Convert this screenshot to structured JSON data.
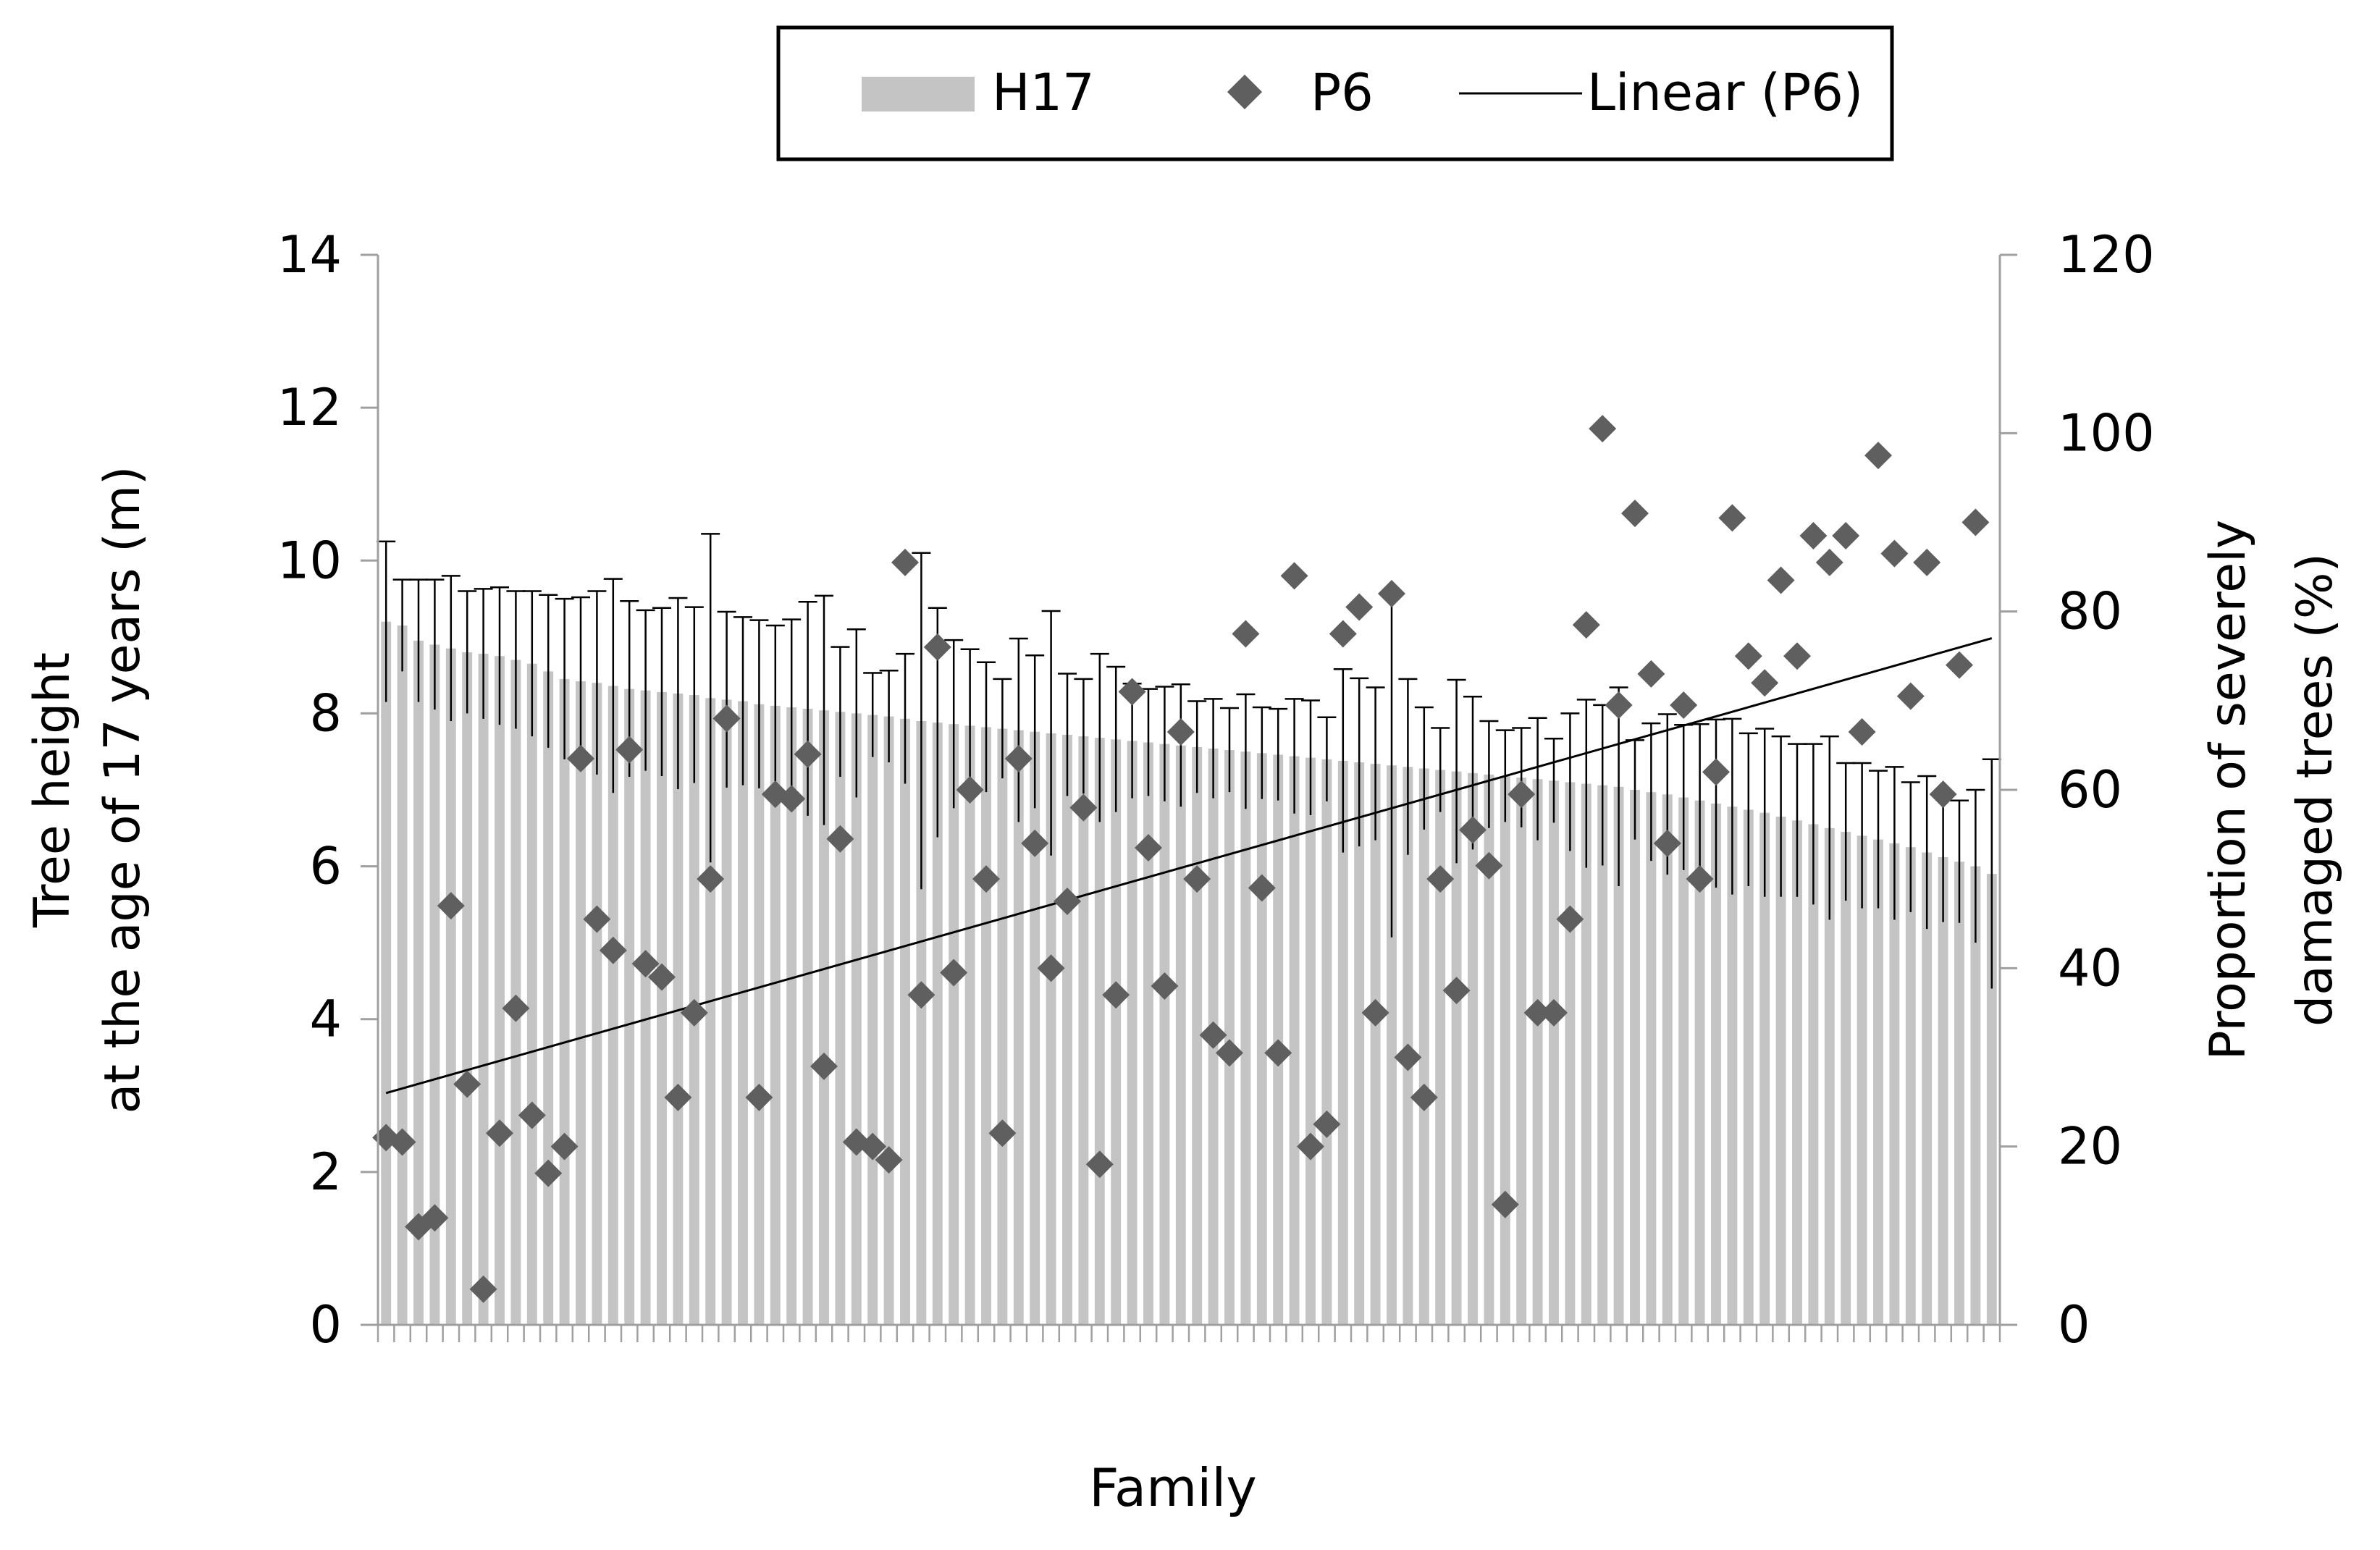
{
  "chart_data": {
    "type": "bar",
    "title": "",
    "xlabel": "Family",
    "ylabel_left": [
      "Tree height",
      "at the age of 17 years (m)"
    ],
    "ylabel_right": [
      "Proportion of severely",
      "damaged trees (%)"
    ],
    "ylim_left": [
      0,
      14
    ],
    "yticks_left": [
      0,
      2,
      4,
      6,
      8,
      10,
      12,
      14
    ],
    "ylim_right": [
      0,
      120
    ],
    "yticks_right": [
      0,
      20,
      40,
      60,
      80,
      100,
      120
    ],
    "legend": [
      {
        "label": "H17",
        "kind": "bar"
      },
      {
        "label": "P6",
        "kind": "marker"
      },
      {
        "label": "Linear (P6)",
        "kind": "line"
      }
    ],
    "colors": {
      "bar": "#c4c4c4",
      "marker": "#5f5f5f",
      "line": "#000000",
      "error": "#000000"
    },
    "series": [
      {
        "name": "H17",
        "axis": "left",
        "values": [
          9.2,
          9.15,
          8.95,
          8.9,
          8.85,
          8.8,
          8.78,
          8.75,
          8.7,
          8.65,
          8.55,
          8.45,
          8.42,
          8.4,
          8.36,
          8.32,
          8.3,
          8.28,
          8.26,
          8.24,
          8.2,
          8.18,
          8.16,
          8.12,
          8.1,
          8.08,
          8.06,
          8.04,
          8.02,
          8.0,
          7.98,
          7.96,
          7.93,
          7.9,
          7.88,
          7.86,
          7.84,
          7.82,
          7.8,
          7.78,
          7.76,
          7.74,
          7.72,
          7.7,
          7.68,
          7.66,
          7.64,
          7.62,
          7.6,
          7.58,
          7.56,
          7.54,
          7.52,
          7.5,
          7.48,
          7.46,
          7.44,
          7.42,
          7.4,
          7.38,
          7.36,
          7.34,
          7.32,
          7.3,
          7.28,
          7.26,
          7.24,
          7.22,
          7.2,
          7.18,
          7.16,
          7.14,
          7.12,
          7.1,
          7.08,
          7.06,
          7.04,
          7.0,
          6.97,
          6.94,
          6.9,
          6.86,
          6.82,
          6.78,
          6.74,
          6.7,
          6.65,
          6.6,
          6.55,
          6.5,
          6.45,
          6.4,
          6.35,
          6.3,
          6.25,
          6.18,
          6.12,
          6.06,
          6.0,
          5.9
        ],
        "error": [
          1.05,
          0.6,
          0.8,
          0.85,
          0.95,
          0.8,
          0.85,
          0.9,
          0.9,
          0.95,
          1.0,
          1.05,
          1.1,
          1.2,
          1.4,
          1.15,
          1.05,
          1.1,
          1.25,
          1.15,
          2.15,
          1.15,
          1.1,
          1.1,
          1.05,
          1.15,
          1.4,
          1.5,
          0.85,
          1.1,
          0.55,
          0.6,
          0.85,
          2.2,
          1.5,
          1.1,
          1.0,
          0.85,
          0.65,
          1.2,
          1.0,
          1.6,
          0.8,
          0.75,
          1.1,
          0.95,
          0.75,
          0.7,
          0.75,
          0.8,
          0.6,
          0.65,
          0.55,
          0.75,
          0.6,
          0.6,
          0.75,
          0.75,
          0.55,
          1.2,
          1.1,
          1.0,
          2.25,
          1.15,
          0.8,
          0.55,
          1.2,
          1.0,
          0.7,
          0.6,
          0.65,
          0.8,
          0.55,
          0.9,
          1.1,
          1.05,
          1.3,
          0.65,
          0.9,
          1.05,
          0.95,
          1.0,
          1.1,
          1.15,
          1.0,
          1.1,
          1.05,
          1.0,
          1.05,
          1.2,
          0.9,
          0.95,
          0.9,
          1.0,
          0.85,
          1.0,
          0.85,
          0.8,
          1.0,
          1.5
        ]
      },
      {
        "name": "P6",
        "axis": "right",
        "points": [
          [
            1,
            21
          ],
          [
            2,
            20.5
          ],
          [
            3,
            11
          ],
          [
            4,
            12
          ],
          [
            5,
            47
          ],
          [
            6,
            27
          ],
          [
            7,
            4
          ],
          [
            8,
            21.5
          ],
          [
            9,
            35.5
          ],
          [
            10,
            23.5
          ],
          [
            11,
            17
          ],
          [
            12,
            20
          ],
          [
            13,
            63.5
          ],
          [
            14,
            45.5
          ],
          [
            15,
            42
          ],
          [
            16,
            64.5
          ],
          [
            17,
            40.5
          ],
          [
            18,
            39
          ],
          [
            19,
            25.5
          ],
          [
            20,
            35
          ],
          [
            21,
            50
          ],
          [
            22,
            68
          ],
          [
            24,
            25.5
          ],
          [
            25,
            59.5
          ],
          [
            26,
            59
          ],
          [
            27,
            64
          ],
          [
            28,
            29
          ],
          [
            29,
            54.5
          ],
          [
            30,
            20.5
          ],
          [
            31,
            20
          ],
          [
            32,
            18.5
          ],
          [
            33,
            85.5
          ],
          [
            34,
            37
          ],
          [
            35,
            76
          ],
          [
            36,
            39.5
          ],
          [
            37,
            60
          ],
          [
            38,
            50
          ],
          [
            39,
            21.5
          ],
          [
            40,
            63.5
          ],
          [
            41,
            54
          ],
          [
            42,
            40
          ],
          [
            43,
            47.5
          ],
          [
            44,
            58
          ],
          [
            45,
            18
          ],
          [
            46,
            37
          ],
          [
            47,
            71
          ],
          [
            48,
            53.5
          ],
          [
            49,
            38
          ],
          [
            50,
            66.5
          ],
          [
            51,
            50
          ],
          [
            52,
            32.5
          ],
          [
            53,
            30.5
          ],
          [
            54,
            77.5
          ],
          [
            55,
            49
          ],
          [
            56,
            30.5
          ],
          [
            57,
            84
          ],
          [
            58,
            20
          ],
          [
            59,
            22.5
          ],
          [
            60,
            77.5
          ],
          [
            61,
            80.5
          ],
          [
            62,
            35
          ],
          [
            63,
            82
          ],
          [
            64,
            30
          ],
          [
            65,
            25.5
          ],
          [
            66,
            50
          ],
          [
            67,
            37.5
          ],
          [
            68,
            55.5
          ],
          [
            69,
            51.5
          ],
          [
            70,
            13.5
          ],
          [
            71,
            59.5
          ],
          [
            72,
            35
          ],
          [
            73,
            35
          ],
          [
            74,
            45.5
          ],
          [
            75,
            78.5
          ],
          [
            76,
            100.5
          ],
          [
            77,
            69.5
          ],
          [
            78,
            91
          ],
          [
            79,
            73
          ],
          [
            80,
            54
          ],
          [
            81,
            69.5
          ],
          [
            82,
            50
          ],
          [
            83,
            62
          ],
          [
            84,
            90.5
          ],
          [
            85,
            75
          ],
          [
            86,
            72
          ],
          [
            87,
            83.5
          ],
          [
            88,
            75
          ],
          [
            89,
            88.5
          ],
          [
            90,
            85.5
          ],
          [
            91,
            88.5
          ],
          [
            92,
            66.5
          ],
          [
            93,
            97.5
          ],
          [
            94,
            86.5
          ],
          [
            95,
            70.5
          ],
          [
            96,
            85.5
          ],
          [
            97,
            59.5
          ],
          [
            98,
            74
          ],
          [
            99,
            90
          ]
        ]
      },
      {
        "name": "Linear (P6)",
        "axis": "right",
        "start": 26,
        "end": 77
      }
    ]
  }
}
